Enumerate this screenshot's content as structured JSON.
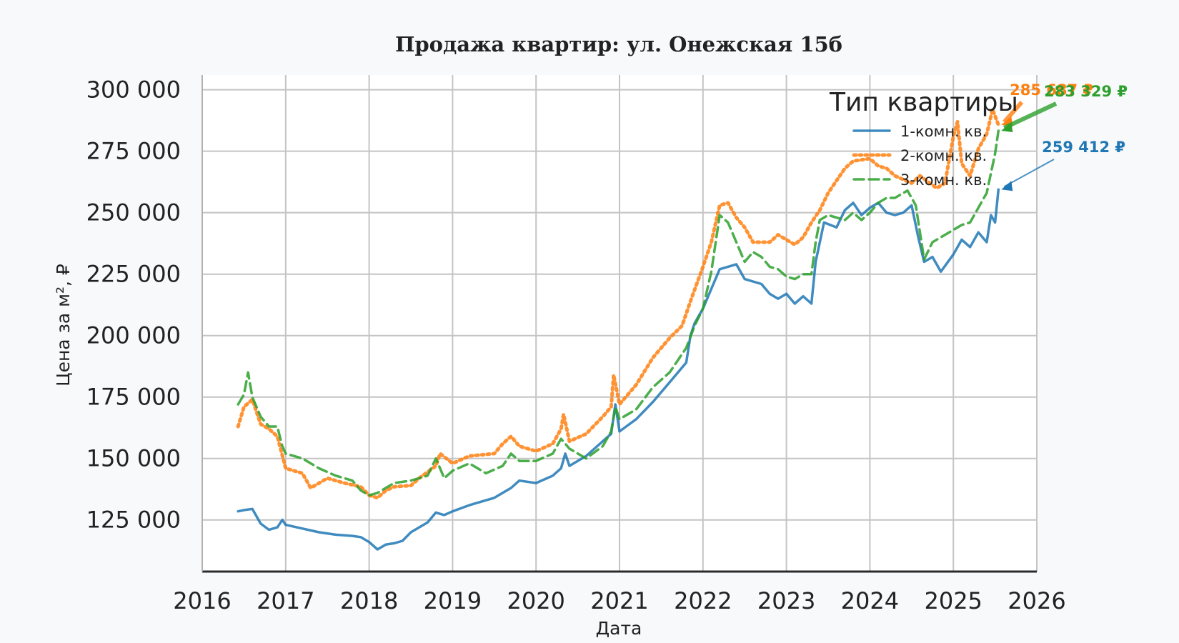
{
  "chart_data": {
    "type": "line",
    "title": "Продажа квартир: ул. Онежская 15б",
    "xlabel": "Дата",
    "ylabel": "Цена за м², ₽",
    "xlim": [
      2016.0,
      2026.0
    ],
    "ylim": [
      104000,
      306000
    ],
    "x_ticks": [
      2016,
      2017,
      2018,
      2019,
      2020,
      2021,
      2022,
      2023,
      2024,
      2025,
      2026
    ],
    "x_tick_labels": [
      "2016",
      "2017",
      "2018",
      "2019",
      "2020",
      "2021",
      "2022",
      "2023",
      "2024",
      "2025",
      "2026"
    ],
    "y_ticks": [
      125000,
      150000,
      175000,
      200000,
      225000,
      250000,
      275000,
      300000
    ],
    "y_tick_labels": [
      "125 000",
      "150 000",
      "175 000",
      "200 000",
      "225 000",
      "250 000",
      "275 000",
      "300 000"
    ],
    "grid": true,
    "legend": {
      "title": "Тип квартиры",
      "position": "top-right"
    },
    "series": [
      {
        "name": "1-комн. кв.",
        "color": "#1f77b4",
        "style": "solid",
        "final_label": "259 412 ₽",
        "points": [
          [
            2016.43,
            128500
          ],
          [
            2016.5,
            129000
          ],
          [
            2016.6,
            129500
          ],
          [
            2016.7,
            123500
          ],
          [
            2016.8,
            121000
          ],
          [
            2016.9,
            122000
          ],
          [
            2016.96,
            125000
          ],
          [
            2017.0,
            123000
          ],
          [
            2017.2,
            121500
          ],
          [
            2017.4,
            120000
          ],
          [
            2017.6,
            119000
          ],
          [
            2017.8,
            118500
          ],
          [
            2017.9,
            118000
          ],
          [
            2018.0,
            116000
          ],
          [
            2018.1,
            113000
          ],
          [
            2018.2,
            115000
          ],
          [
            2018.3,
            115500
          ],
          [
            2018.4,
            116500
          ],
          [
            2018.5,
            120000
          ],
          [
            2018.7,
            124000
          ],
          [
            2018.8,
            128000
          ],
          [
            2018.9,
            127000
          ],
          [
            2019.0,
            128500
          ],
          [
            2019.2,
            131000
          ],
          [
            2019.5,
            134000
          ],
          [
            2019.7,
            138000
          ],
          [
            2019.8,
            141000
          ],
          [
            2020.0,
            140000
          ],
          [
            2020.2,
            143000
          ],
          [
            2020.3,
            146000
          ],
          [
            2020.35,
            152000
          ],
          [
            2020.4,
            147000
          ],
          [
            2020.6,
            151000
          ],
          [
            2020.8,
            157000
          ],
          [
            2020.9,
            160000
          ],
          [
            2020.95,
            172000
          ],
          [
            2021.0,
            161000
          ],
          [
            2021.2,
            166000
          ],
          [
            2021.4,
            173000
          ],
          [
            2021.6,
            181000
          ],
          [
            2021.8,
            189000
          ],
          [
            2021.85,
            200000
          ],
          [
            2021.9,
            205000
          ],
          [
            2022.0,
            211000
          ],
          [
            2022.1,
            219000
          ],
          [
            2022.2,
            227000
          ],
          [
            2022.3,
            228000
          ],
          [
            2022.4,
            229000
          ],
          [
            2022.5,
            223000
          ],
          [
            2022.7,
            221000
          ],
          [
            2022.8,
            217000
          ],
          [
            2022.9,
            215000
          ],
          [
            2023.0,
            217000
          ],
          [
            2023.1,
            213000
          ],
          [
            2023.2,
            216000
          ],
          [
            2023.3,
            213000
          ],
          [
            2023.35,
            230000
          ],
          [
            2023.45,
            246000
          ],
          [
            2023.6,
            244000
          ],
          [
            2023.7,
            251000
          ],
          [
            2023.8,
            254000
          ],
          [
            2023.9,
            249000
          ],
          [
            2024.0,
            252000
          ],
          [
            2024.1,
            254000
          ],
          [
            2024.2,
            250000
          ],
          [
            2024.3,
            249000
          ],
          [
            2024.4,
            250000
          ],
          [
            2024.5,
            253000
          ],
          [
            2024.58,
            240000
          ],
          [
            2024.65,
            230000
          ],
          [
            2024.75,
            232000
          ],
          [
            2024.85,
            226000
          ],
          [
            2025.0,
            233000
          ],
          [
            2025.1,
            239000
          ],
          [
            2025.2,
            236000
          ],
          [
            2025.3,
            242000
          ],
          [
            2025.4,
            238000
          ],
          [
            2025.45,
            249000
          ],
          [
            2025.5,
            246000
          ],
          [
            2025.54,
            259412
          ]
        ]
      },
      {
        "name": "2-комн. кв.",
        "color": "#ff7f0e",
        "style": "dotted",
        "final_label": "285 687 ₽",
        "points": [
          [
            2016.43,
            163000
          ],
          [
            2016.5,
            171000
          ],
          [
            2016.6,
            174000
          ],
          [
            2016.7,
            164000
          ],
          [
            2016.8,
            162000
          ],
          [
            2016.9,
            159000
          ],
          [
            2017.0,
            146000
          ],
          [
            2017.2,
            144000
          ],
          [
            2017.3,
            138000
          ],
          [
            2017.5,
            142000
          ],
          [
            2017.7,
            140000
          ],
          [
            2017.9,
            138500
          ],
          [
            2018.0,
            135000
          ],
          [
            2018.1,
            134000
          ],
          [
            2018.2,
            137000
          ],
          [
            2018.3,
            138500
          ],
          [
            2018.5,
            139000
          ],
          [
            2018.6,
            142000
          ],
          [
            2018.8,
            147000
          ],
          [
            2018.85,
            152000
          ],
          [
            2019.0,
            148000
          ],
          [
            2019.2,
            151000
          ],
          [
            2019.5,
            152000
          ],
          [
            2019.6,
            156000
          ],
          [
            2019.7,
            159000
          ],
          [
            2019.8,
            155000
          ],
          [
            2020.0,
            153000
          ],
          [
            2020.2,
            156000
          ],
          [
            2020.3,
            162000
          ],
          [
            2020.33,
            168000
          ],
          [
            2020.4,
            157000
          ],
          [
            2020.6,
            160000
          ],
          [
            2020.8,
            167000
          ],
          [
            2020.9,
            171000
          ],
          [
            2020.93,
            184000
          ],
          [
            2021.0,
            172000
          ],
          [
            2021.2,
            180000
          ],
          [
            2021.4,
            191000
          ],
          [
            2021.6,
            199000
          ],
          [
            2021.75,
            204000
          ],
          [
            2021.85,
            214000
          ],
          [
            2022.0,
            228000
          ],
          [
            2022.1,
            238000
          ],
          [
            2022.2,
            253000
          ],
          [
            2022.3,
            254000
          ],
          [
            2022.4,
            248000
          ],
          [
            2022.5,
            244000
          ],
          [
            2022.6,
            238000
          ],
          [
            2022.8,
            238000
          ],
          [
            2022.9,
            241000
          ],
          [
            2023.0,
            239000
          ],
          [
            2023.1,
            237000
          ],
          [
            2023.2,
            240000
          ],
          [
            2023.3,
            246000
          ],
          [
            2023.4,
            251000
          ],
          [
            2023.5,
            258000
          ],
          [
            2023.6,
            263000
          ],
          [
            2023.7,
            268000
          ],
          [
            2023.8,
            271000
          ],
          [
            2024.0,
            272000
          ],
          [
            2024.1,
            269000
          ],
          [
            2024.2,
            268000
          ],
          [
            2024.3,
            265000
          ],
          [
            2024.5,
            262000
          ],
          [
            2024.6,
            265000
          ],
          [
            2024.8,
            260000
          ],
          [
            2024.9,
            262000
          ],
          [
            2025.0,
            281000
          ],
          [
            2025.05,
            287000
          ],
          [
            2025.1,
            270000
          ],
          [
            2025.2,
            265000
          ],
          [
            2025.3,
            276000
          ],
          [
            2025.4,
            282000
          ],
          [
            2025.47,
            292000
          ],
          [
            2025.54,
            285687
          ]
        ]
      },
      {
        "name": "3-комн. кв.",
        "color": "#2ca02c",
        "style": "dashed",
        "final_label": "283 329 ₽",
        "points": [
          [
            2016.43,
            172000
          ],
          [
            2016.5,
            176000
          ],
          [
            2016.55,
            185000
          ],
          [
            2016.6,
            175000
          ],
          [
            2016.7,
            167000
          ],
          [
            2016.8,
            163000
          ],
          [
            2016.9,
            163000
          ],
          [
            2016.96,
            155000
          ],
          [
            2017.0,
            152000
          ],
          [
            2017.2,
            150000
          ],
          [
            2017.4,
            146000
          ],
          [
            2017.6,
            143000
          ],
          [
            2017.8,
            141000
          ],
          [
            2017.9,
            137000
          ],
          [
            2018.0,
            135000
          ],
          [
            2018.1,
            136000
          ],
          [
            2018.3,
            140000
          ],
          [
            2018.5,
            141000
          ],
          [
            2018.7,
            143000
          ],
          [
            2018.8,
            150000
          ],
          [
            2018.9,
            142000
          ],
          [
            2019.0,
            145000
          ],
          [
            2019.2,
            148000
          ],
          [
            2019.4,
            144000
          ],
          [
            2019.6,
            147000
          ],
          [
            2019.7,
            152000
          ],
          [
            2019.8,
            149000
          ],
          [
            2020.0,
            149000
          ],
          [
            2020.2,
            152000
          ],
          [
            2020.3,
            158000
          ],
          [
            2020.4,
            154000
          ],
          [
            2020.6,
            150000
          ],
          [
            2020.8,
            155000
          ],
          [
            2020.9,
            161000
          ],
          [
            2020.95,
            171000
          ],
          [
            2021.0,
            166000
          ],
          [
            2021.2,
            170000
          ],
          [
            2021.4,
            179000
          ],
          [
            2021.6,
            185000
          ],
          [
            2021.8,
            195000
          ],
          [
            2021.9,
            204000
          ],
          [
            2022.0,
            211000
          ],
          [
            2022.1,
            226000
          ],
          [
            2022.2,
            249000
          ],
          [
            2022.3,
            246000
          ],
          [
            2022.4,
            238000
          ],
          [
            2022.5,
            230000
          ],
          [
            2022.6,
            234000
          ],
          [
            2022.7,
            232000
          ],
          [
            2022.8,
            228000
          ],
          [
            2022.9,
            227000
          ],
          [
            2023.0,
            224000
          ],
          [
            2023.1,
            223000
          ],
          [
            2023.2,
            225000
          ],
          [
            2023.3,
            225000
          ],
          [
            2023.35,
            238000
          ],
          [
            2023.4,
            247000
          ],
          [
            2023.5,
            249000
          ],
          [
            2023.7,
            247000
          ],
          [
            2023.8,
            250000
          ],
          [
            2023.9,
            247000
          ],
          [
            2024.0,
            250000
          ],
          [
            2024.1,
            254000
          ],
          [
            2024.2,
            256000
          ],
          [
            2024.3,
            256000
          ],
          [
            2024.45,
            259000
          ],
          [
            2024.55,
            253000
          ],
          [
            2024.65,
            231000
          ],
          [
            2024.75,
            238000
          ],
          [
            2024.85,
            240000
          ],
          [
            2025.0,
            243000
          ],
          [
            2025.1,
            245000
          ],
          [
            2025.2,
            246000
          ],
          [
            2025.3,
            252000
          ],
          [
            2025.4,
            258000
          ],
          [
            2025.5,
            274000
          ],
          [
            2025.54,
            283329
          ]
        ]
      }
    ]
  }
}
